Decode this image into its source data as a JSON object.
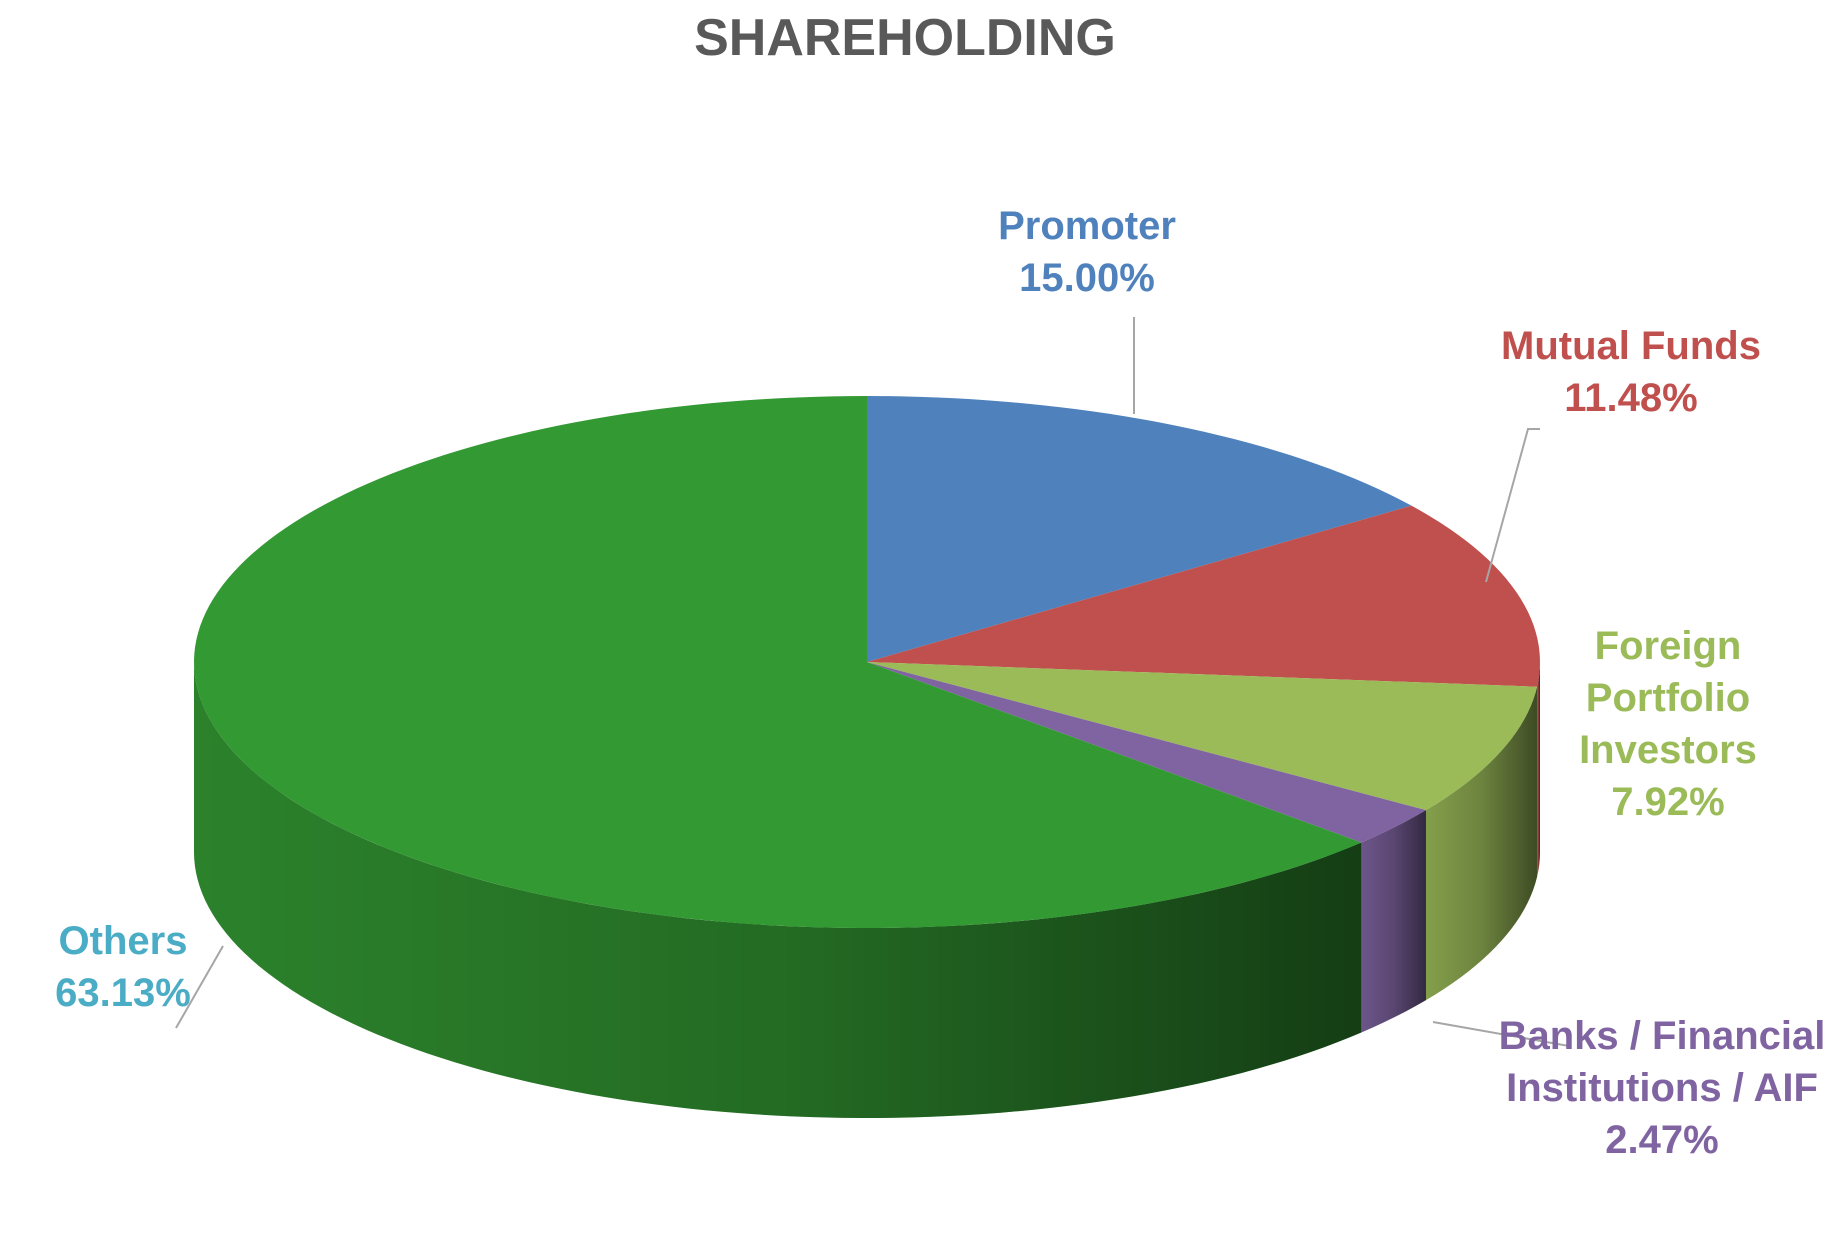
{
  "chart_data": {
    "type": "pie3d",
    "title": "SHAREHOLDING",
    "categories": [
      "Promoter",
      "Mutual Funds",
      "Foreign Portfolio Investors",
      "Banks / Financial Institutions / AIF",
      "Others"
    ],
    "values": [
      15,
      11.48,
      7.92,
      2.47,
      63.13
    ],
    "value_labels": [
      "15.00%",
      "11.48%",
      "7.92%",
      "2.47%",
      "63.13%"
    ],
    "colors": [
      "#4f81bd",
      "#c0504d",
      "#9bbb59",
      "#8064a2",
      "#339933"
    ],
    "label_colors": [
      "#4f81bd",
      "#c0504d",
      "#9bbb59",
      "#8064a2",
      "#4bacc6"
    ]
  }
}
